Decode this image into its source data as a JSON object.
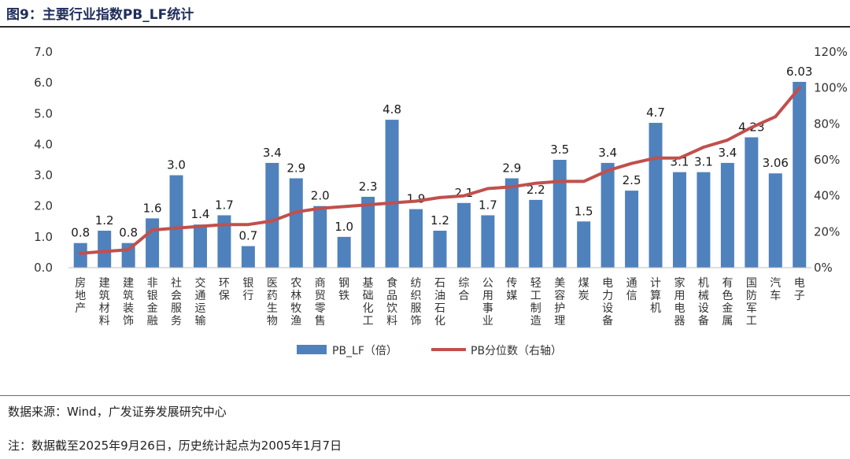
{
  "figure": {
    "title": "图9：主要行业指数PB_LF统计",
    "source": "数据来源：Wind，广发证券发展研究中心",
    "note": "注：数据截至2025年9月26日，历史统计起点为2005年1月7日"
  },
  "colors": {
    "bar": "#4f81bd",
    "line": "#c0504d",
    "title": "#1f2d5a"
  },
  "chart_data": {
    "type": "bar",
    "title": "主要行业指数PB_LF统计",
    "categories": [
      "房地产",
      "建筑材料",
      "建筑装饰",
      "非银金融",
      "社会服务",
      "交通运输",
      "环保",
      "银行",
      "医药生物",
      "农林牧渔",
      "商贸零售",
      "钢铁",
      "基础化工",
      "食品饮料",
      "纺织服饰",
      "石油石化",
      "综合",
      "公用事业",
      "传媒",
      "轻工制造",
      "美容护理",
      "煤炭",
      "电力设备",
      "通信",
      "计算机",
      "家用电器",
      "机械设备",
      "有色金属",
      "国防军工",
      "汽车",
      "电子"
    ],
    "series": [
      {
        "name": "PB_LF（倍）",
        "type": "bar",
        "axis": "left",
        "values": [
          0.8,
          1.2,
          0.8,
          1.6,
          3.0,
          1.4,
          1.7,
          0.7,
          3.4,
          2.9,
          2.0,
          1.0,
          2.3,
          4.8,
          1.9,
          1.2,
          2.1,
          1.7,
          2.9,
          2.2,
          3.5,
          1.5,
          3.4,
          2.5,
          4.7,
          3.1,
          3.1,
          3.4,
          4.23,
          3.06,
          6.03
        ],
        "labels": [
          "0.8",
          "1.2",
          "0.8",
          "1.6",
          "3.0",
          "1.4",
          "1.7",
          "0.7",
          "3.4",
          "2.9",
          "2.0",
          "1.0",
          "2.3",
          "4.8",
          "1.9",
          "1.2",
          "2.1",
          "1.7",
          "2.9",
          "2.2",
          "3.5",
          "1.5",
          "3.4",
          "2.5",
          "4.7",
          "3.1",
          "3.1",
          "3.4",
          "4.23",
          "3.06",
          "6.03"
        ]
      },
      {
        "name": "PB分位数（右轴）",
        "type": "line",
        "axis": "right",
        "values": [
          8,
          9,
          10,
          21,
          22,
          23,
          24,
          24,
          26,
          31,
          33,
          34,
          35,
          36,
          37,
          39,
          40,
          44,
          45,
          47,
          48,
          48,
          54,
          58,
          61,
          61,
          67,
          71,
          78,
          84,
          100
        ]
      }
    ],
    "y_left": {
      "min": 0,
      "max": 7,
      "ticks": [
        "0.0",
        "1.0",
        "2.0",
        "3.0",
        "4.0",
        "5.0",
        "6.0",
        "7.0"
      ]
    },
    "y_right": {
      "min": 0,
      "max": 120,
      "ticks": [
        "0%",
        "20%",
        "40%",
        "60%",
        "80%",
        "100%",
        "120%"
      ]
    },
    "legend": {
      "position": "bottom",
      "items": [
        "PB_LF（倍）",
        "PB分位数（右轴）"
      ]
    },
    "grid": false
  }
}
